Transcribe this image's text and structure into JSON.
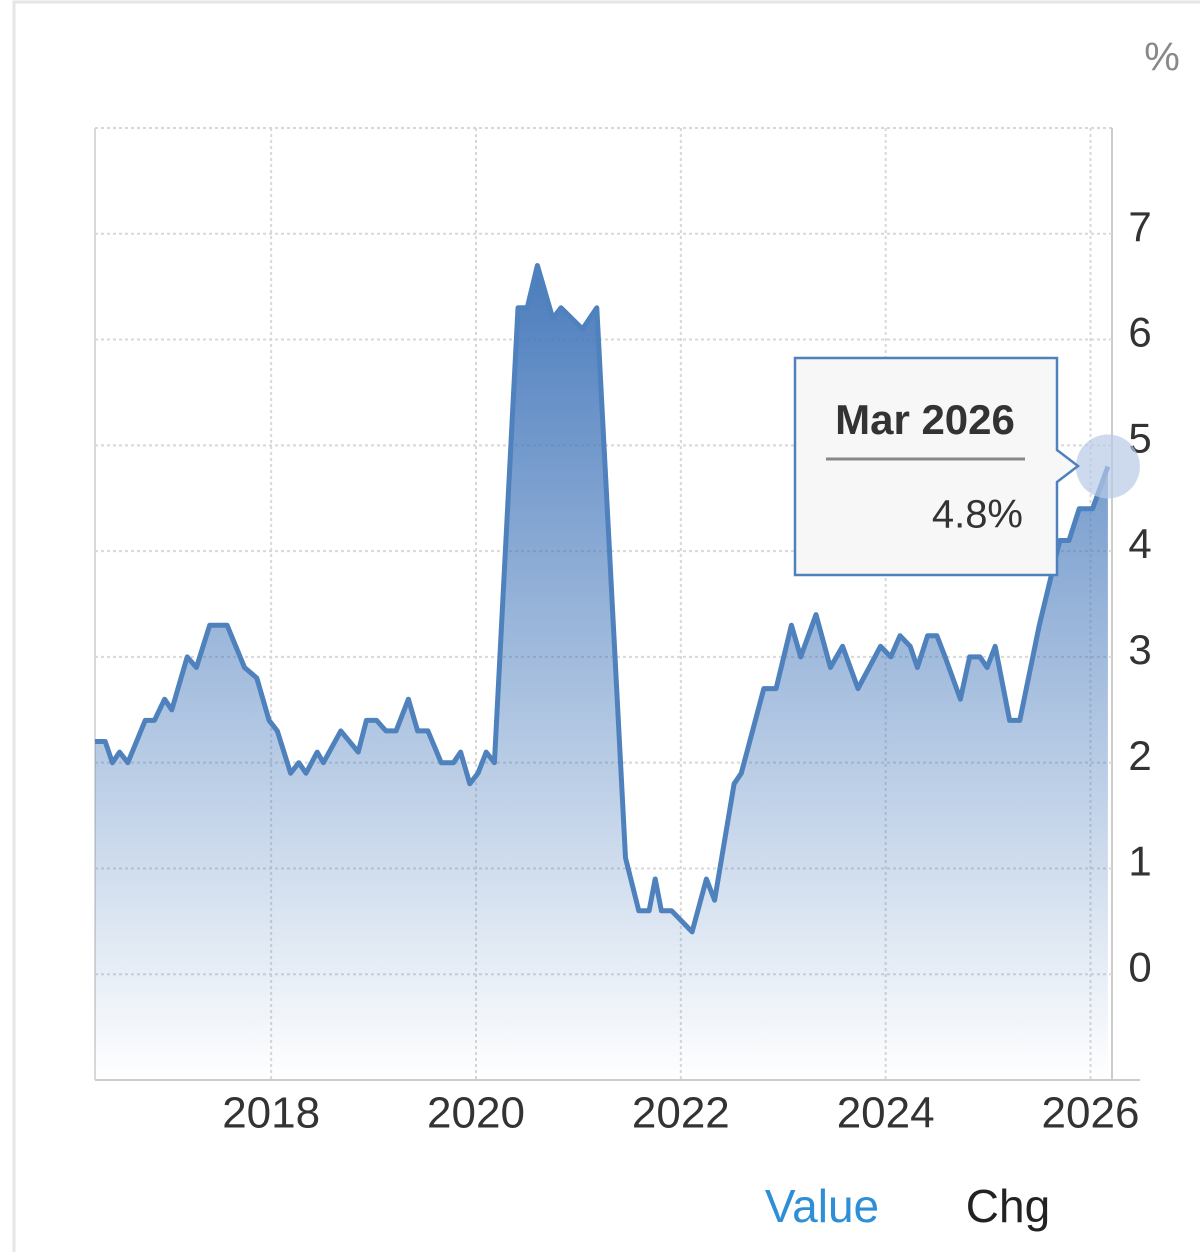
{
  "chart_data": {
    "type": "area",
    "unit": "%",
    "color": "#4f81bd",
    "x": [
      2016.28,
      2016.38,
      2016.45,
      2016.52,
      2016.6,
      2016.77,
      2016.86,
      2016.96,
      2017.03,
      2017.18,
      2017.27,
      2017.4,
      2017.57,
      2017.74,
      2017.86,
      2017.98,
      2018.06,
      2018.19,
      2018.27,
      2018.34,
      2018.45,
      2018.51,
      2018.68,
      2018.85,
      2018.93,
      2019.03,
      2019.12,
      2019.22,
      2019.34,
      2019.43,
      2019.53,
      2019.66,
      2019.78,
      2019.85,
      2019.94,
      2020.02,
      2020.1,
      2020.18,
      2020.41,
      2020.5,
      2020.6,
      2020.75,
      2020.83,
      2021.04,
      2021.18,
      2021.46,
      2021.59,
      2021.69,
      2021.75,
      2021.81,
      2021.91,
      2022.01,
      2022.11,
      2022.25,
      2022.33,
      2022.52,
      2022.59,
      2022.81,
      2022.93,
      2023.08,
      2023.17,
      2023.32,
      2023.46,
      2023.58,
      2023.73,
      2023.95,
      2024.05,
      2024.14,
      2024.24,
      2024.31,
      2024.41,
      2024.5,
      2024.58,
      2024.73,
      2024.82,
      2024.92,
      2024.99,
      2025.07,
      2025.21,
      2025.31,
      2025.5,
      2025.7,
      2025.79,
      2025.89,
      2026.02,
      2026.17
    ],
    "values": [
      2.2,
      2.2,
      2.0,
      2.1,
      2.0,
      2.4,
      2.4,
      2.6,
      2.5,
      3.0,
      2.9,
      3.3,
      3.3,
      2.9,
      2.8,
      2.4,
      2.3,
      1.9,
      2.0,
      1.9,
      2.1,
      2.0,
      2.3,
      2.1,
      2.4,
      2.4,
      2.3,
      2.3,
      2.6,
      2.3,
      2.3,
      2.0,
      2.0,
      2.1,
      1.8,
      1.9,
      2.1,
      2.0,
      6.3,
      6.3,
      6.7,
      6.2,
      6.3,
      6.1,
      6.3,
      1.1,
      0.6,
      0.6,
      0.9,
      0.6,
      0.6,
      0.5,
      0.4,
      0.9,
      0.7,
      1.8,
      1.9,
      2.7,
      2.7,
      3.3,
      3.0,
      3.4,
      2.9,
      3.1,
      2.7,
      3.1,
      3.0,
      3.2,
      3.1,
      2.9,
      3.2,
      3.2,
      3.0,
      2.6,
      3.0,
      3.0,
      2.9,
      3.1,
      2.4,
      2.4,
      3.3,
      4.1,
      4.1,
      4.4,
      4.4,
      4.8
    ],
    "xlim": [
      2016.28,
      2026.21
    ],
    "xticks": [
      2018,
      2020,
      2022,
      2024,
      2026
    ],
    "ylim": [
      -1,
      8
    ],
    "yticks": [
      0,
      1,
      2,
      3,
      4,
      5,
      6,
      7
    ],
    "grid": true,
    "tooltip": {
      "title": "Mar 2026",
      "value": 4.8,
      "value_label": "4.8%"
    },
    "tabs": [
      "Value",
      "Chg"
    ]
  }
}
